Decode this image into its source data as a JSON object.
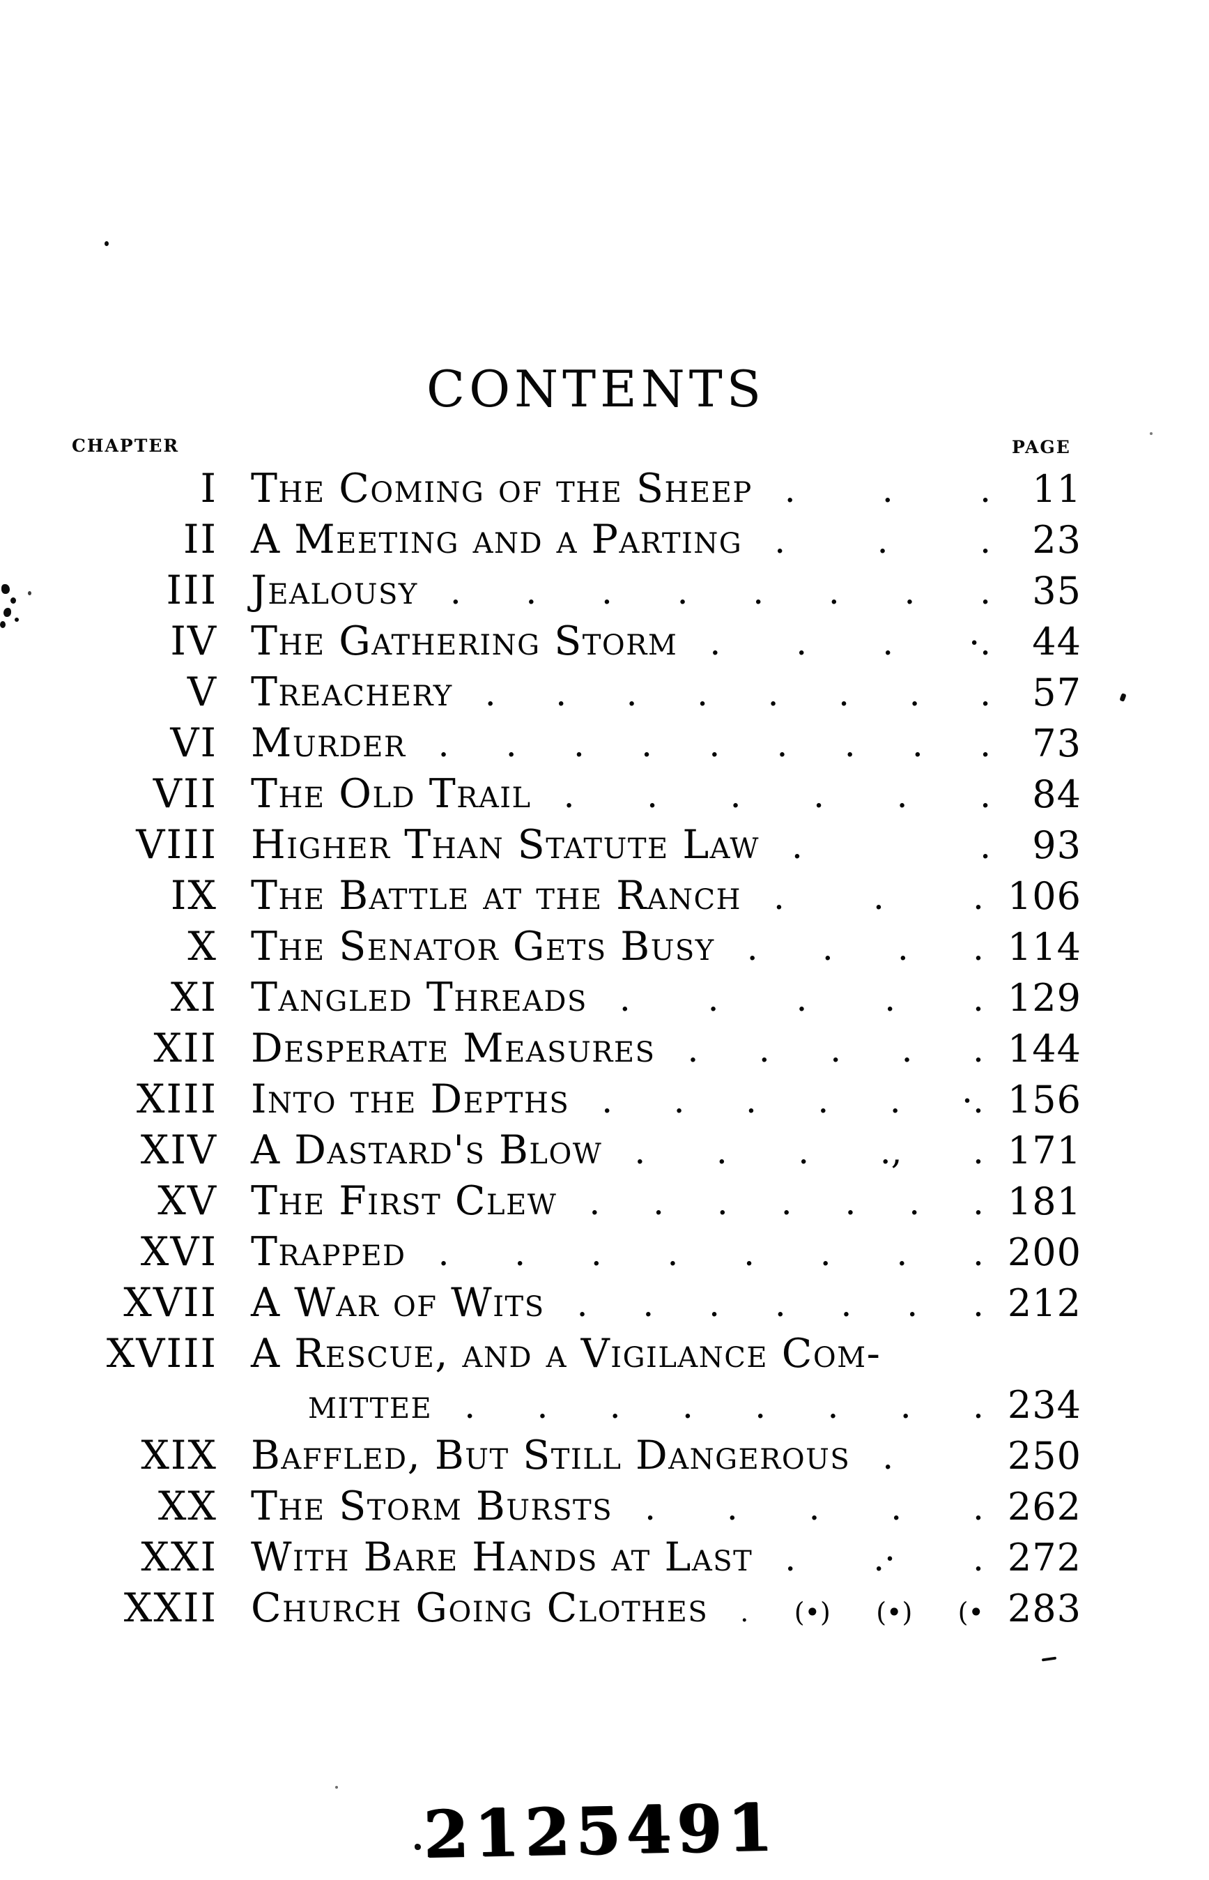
{
  "page": {
    "title": "CONTENTS",
    "chapter_column_label": "CHAPTER",
    "page_column_label": "PAGE",
    "stamp": "2125491"
  },
  "toc": {
    "entries": [
      {
        "numeral": "I",
        "title": "The Coming of the Sheep",
        "leader": ". . .",
        "page": "11"
      },
      {
        "numeral": "II",
        "title": "A Meeting and a Parting",
        "leader": ". . .",
        "page": "23"
      },
      {
        "numeral": "III",
        "title": "Jealousy",
        "leader": ". . . . . . . .",
        "page": "35"
      },
      {
        "numeral": "IV",
        "title": "The Gathering Storm",
        "leader": ". . . ·.",
        "page": "44"
      },
      {
        "numeral": "V",
        "title": "Treachery",
        "leader": ". . . . . . . .",
        "page": "57"
      },
      {
        "numeral": "VI",
        "title": "Murder",
        "leader": ". . . . . . . . .",
        "page": "73"
      },
      {
        "numeral": "VII",
        "title": "The Old Trail",
        "leader": ". . . . . .",
        "page": "84"
      },
      {
        "numeral": "VIII",
        "title": "Higher Than Statute Law",
        "leader": ". .",
        "page": "93"
      },
      {
        "numeral": "IX",
        "title": "The Battle at the Ranch",
        "leader": ". . .",
        "page": "106"
      },
      {
        "numeral": "X",
        "title": "The Senator Gets Busy",
        "leader": ". . . .",
        "page": "114"
      },
      {
        "numeral": "XI",
        "title": "Tangled Threads",
        "leader": ". . . . .",
        "page": "129"
      },
      {
        "numeral": "XII",
        "title": "Desperate Measures",
        "leader": ". . . . .",
        "page": "144"
      },
      {
        "numeral": "XIII",
        "title": "Into the Depths",
        "leader": ". . . . . ·.",
        "page": "156"
      },
      {
        "numeral": "XIV",
        "title": "A Dastard's Blow",
        "leader": ". . . ., .",
        "page": "171"
      },
      {
        "numeral": "XV",
        "title": "The First Clew",
        "leader": ". . . . . . .",
        "page": "181"
      },
      {
        "numeral": "XVI",
        "title": "Trapped",
        "leader": ". . . . . . . .",
        "page": "200"
      },
      {
        "numeral": "XVII",
        "title": "A War of Wits",
        "leader": ". . . . . . .",
        "page": "212"
      },
      {
        "numeral": "XVIII",
        "title": "A Rescue, and a Vigilance Com-",
        "leader": "",
        "page": ""
      },
      {
        "numeral": "",
        "title": "mittee",
        "leader": ". . . . . . . .",
        "page": "234",
        "continuation": true
      },
      {
        "numeral": "XIX",
        "title": "Baffled, But Still Dangerous",
        "leader": ".",
        "page": "250"
      },
      {
        "numeral": "XX",
        "title": "The Storm Bursts",
        "leader": ". . . . .",
        "page": "262"
      },
      {
        "numeral": "XXI",
        "title": "With Bare Hands at Last",
        "leader": ". .· .",
        "page": "272"
      },
      {
        "numeral": "XXII",
        "title": "Church Going Clothes",
        "leader": ". (•) (•) (•",
        "page": "283"
      }
    ]
  }
}
